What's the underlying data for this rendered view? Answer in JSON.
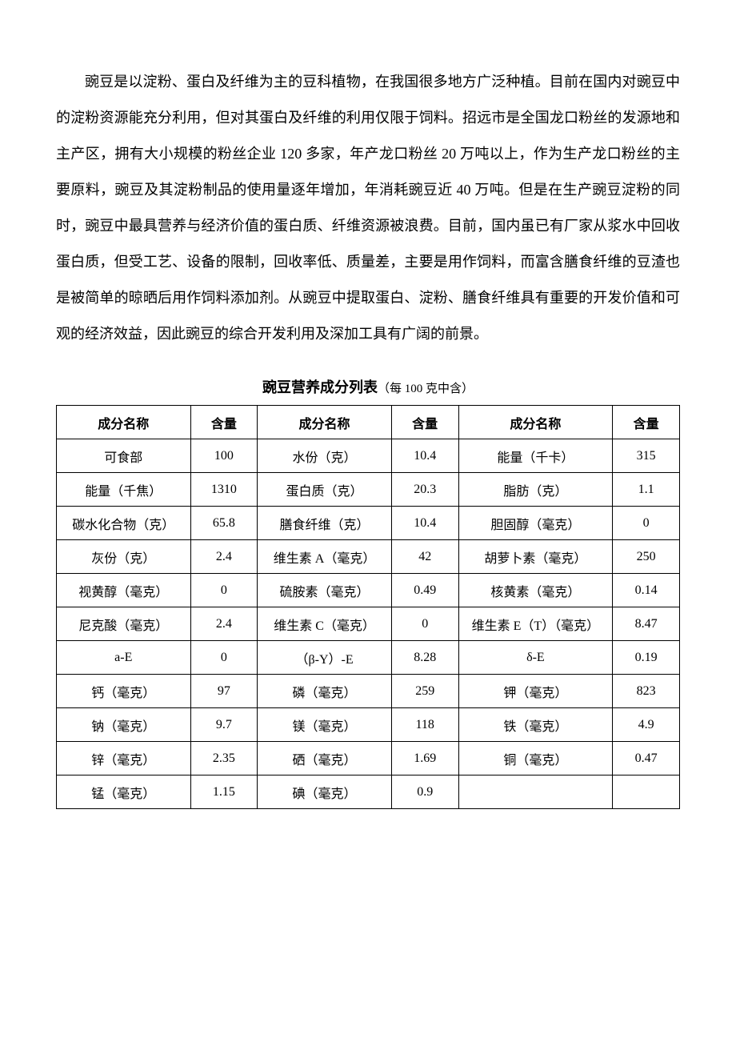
{
  "paragraph": "豌豆是以淀粉、蛋白及纤维为主的豆科植物，在我国很多地方广泛种植。目前在国内对豌豆中的淀粉资源能充分利用，但对其蛋白及纤维的利用仅限于饲料。招远市是全国龙口粉丝的发源地和主产区，拥有大小规模的粉丝企业 120 多家，年产龙口粉丝 20 万吨以上，作为生产龙口粉丝的主要原料，豌豆及其淀粉制品的使用量逐年增加，年消耗豌豆近 40 万吨。但是在生产豌豆淀粉的同时，豌豆中最具营养与经济价值的蛋白质、纤维资源被浪费。目前，国内虽已有厂家从浆水中回收蛋白质，但受工艺、设备的限制，回收率低、质量差，主要是用作饲料，而富含膳食纤维的豆渣也是被简单的晾晒后用作饲料添加剂。从豌豆中提取蛋白、淀粉、膳食纤维具有重要的开发价值和可观的经济效益，因此豌豆的综合开发利用及深加工具有广阔的前景。",
  "table": {
    "title_bold": "豌豆营养成分列表",
    "title_note": "（每 100 克中含）",
    "headers": [
      "成分名称",
      "含量",
      "成分名称",
      "含量",
      "成分名称",
      "含量"
    ],
    "rows": [
      [
        "可食部",
        "100",
        "水份（克）",
        "10.4",
        "能量（千卡）",
        "315"
      ],
      [
        "能量（千焦）",
        "1310",
        "蛋白质（克）",
        "20.3",
        "脂肪（克）",
        "1.1"
      ],
      [
        "碳水化合物（克）",
        "65.8",
        "膳食纤维（克）",
        "10.4",
        "胆固醇（毫克）",
        "0"
      ],
      [
        "灰份（克）",
        "2.4",
        "维生素 A（毫克）",
        "42",
        "胡萝卜素（毫克）",
        "250"
      ],
      [
        "视黄醇（毫克）",
        "0",
        "硫胺素（毫克）",
        "0.49",
        "核黄素（毫克）",
        "0.14"
      ],
      [
        "尼克酸（毫克）",
        "2.4",
        "维生素 C（毫克）",
        "0",
        "维生素 E（T）（毫克）",
        "8.47"
      ],
      [
        "a-E",
        "0",
        "（β-Y）-E",
        "8.28",
        "δ-E",
        "0.19"
      ],
      [
        "钙（毫克）",
        "97",
        "磷（毫克）",
        "259",
        "钾（毫克）",
        "823"
      ],
      [
        "钠（毫克）",
        "9.7",
        "镁（毫克）",
        "118",
        "铁（毫克）",
        "4.9"
      ],
      [
        "锌（毫克）",
        "2.35",
        "硒（毫克）",
        "1.69",
        "铜（毫克）",
        "0.47"
      ],
      [
        "锰（毫克）",
        "1.15",
        "碘（毫克）",
        "0.9",
        "",
        ""
      ]
    ]
  }
}
